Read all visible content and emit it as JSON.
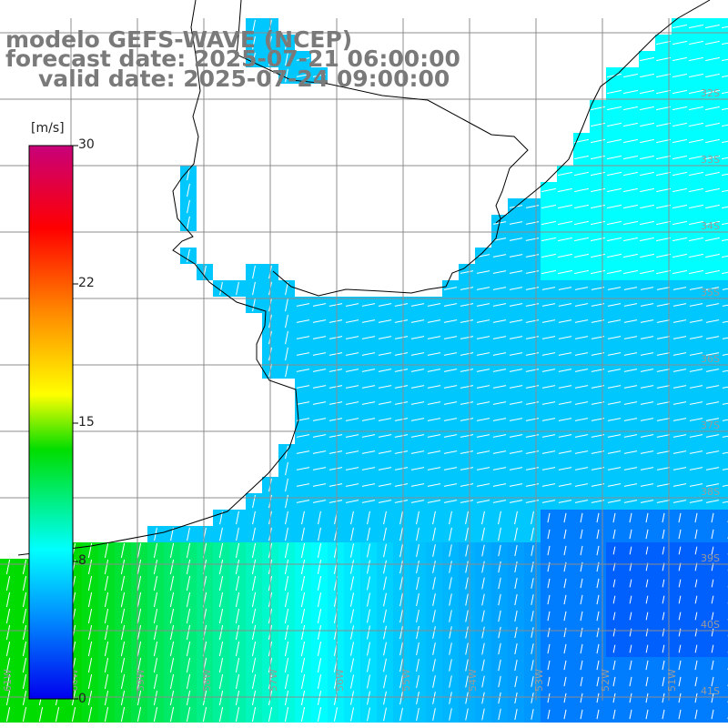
{
  "header": {
    "line1": "modelo GEFS-WAVE (NCEP)",
    "line2": "forecast date: 2025-07-21 06:00:00",
    "line3": "valid date: 2025-07-24 09:00:00"
  },
  "colorbar": {
    "unit": "[m/s]",
    "min": 0,
    "max": 30,
    "ticks": [
      "30",
      "22",
      "15",
      "8",
      "0"
    ],
    "tick_values": [
      30,
      22,
      15,
      8,
      0
    ],
    "colors": [
      "#0000ee",
      "#0090ff",
      "#00ffff",
      "#00dd00",
      "#ffff00",
      "#ff8800",
      "#ff0000",
      "#c8007a"
    ]
  },
  "map": {
    "lat_labels": [
      "32S",
      "33S",
      "34S",
      "35S",
      "36S",
      "37S",
      "38S",
      "39S",
      "40S",
      "41S"
    ],
    "lon_labels": [
      "61W",
      "60W",
      "59W",
      "58W",
      "57W",
      "56W",
      "55W",
      "54W",
      "53W",
      "52W",
      "51W"
    ],
    "land_color": "#ffffff",
    "grid_color": "#8c8c8c",
    "arrow_color": "#ffffff"
  }
}
